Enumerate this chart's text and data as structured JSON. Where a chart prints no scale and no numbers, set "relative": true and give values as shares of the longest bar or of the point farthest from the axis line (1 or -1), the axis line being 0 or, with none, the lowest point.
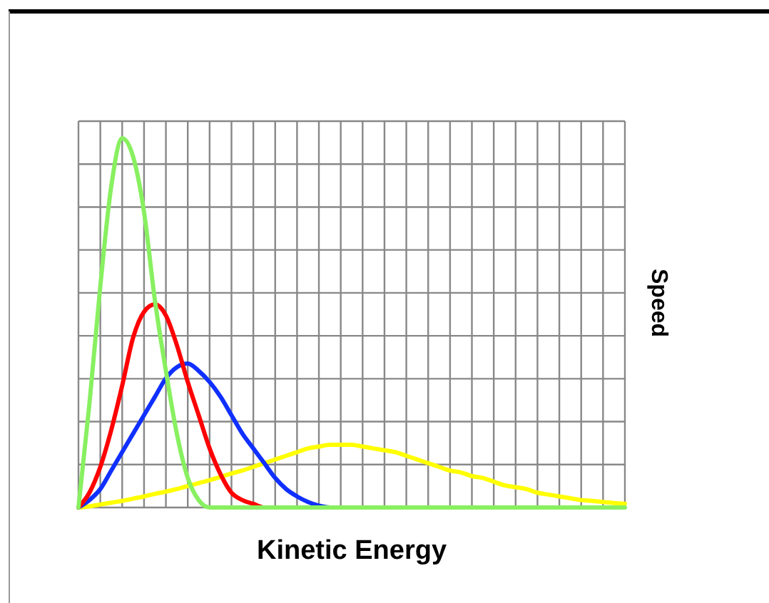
{
  "chart_data": {
    "type": "line",
    "xlabel": "Kinetic Energy",
    "ylabel": "Speed",
    "relative": true,
    "grid": true,
    "marker": "none",
    "line_style": "solid",
    "categories": [
      null,
      null,
      null,
      null,
      null,
      null,
      null,
      null,
      null,
      null,
      null,
      null,
      null,
      null,
      null,
      null,
      null,
      null,
      null,
      null,
      null,
      null,
      null,
      null,
      null,
      null,
      null,
      null,
      null,
      null,
      null,
      null,
      null,
      null,
      null,
      null,
      null,
      null,
      null,
      null,
      null,
      null,
      null,
      null,
      null,
      null,
      null,
      null,
      null,
      null,
      null
    ],
    "series": [
      {
        "color": "#ffff00",
        "values": [
          0,
          0.003,
          0.008,
          0.013,
          0.018,
          0.024,
          0.03,
          0.037,
          0.043,
          0.05,
          0.058,
          0.066,
          0.074,
          0.083,
          0.092,
          0.1,
          0.11,
          0.12,
          0.13,
          0.14,
          0.15,
          0.16,
          0.165,
          0.17,
          0.17,
          0.17,
          0.165,
          0.16,
          0.155,
          0.15,
          0.14,
          0.13,
          0.12,
          0.11,
          0.1,
          0.095,
          0.085,
          0.08,
          0.07,
          0.06,
          0.055,
          0.05,
          0.04,
          0.035,
          0.03,
          0.025,
          0.02,
          0.018,
          0.015,
          0.012,
          0.01
        ]
      },
      {
        "color": "#1030ff",
        "values": [
          0,
          0.02,
          0.05,
          0.1,
          0.15,
          0.2,
          0.25,
          0.3,
          0.35,
          0.38,
          0.39,
          0.37,
          0.34,
          0.3,
          0.25,
          0.2,
          0.16,
          0.12,
          0.08,
          0.05,
          0.03,
          0.015,
          0.005,
          0,
          0,
          null,
          null,
          null,
          null,
          null,
          null,
          null,
          null,
          null,
          null,
          null,
          null,
          null,
          null,
          null,
          null,
          null,
          null,
          null,
          null,
          null,
          null,
          null,
          null,
          null,
          null
        ]
      },
      {
        "color": "#ff0000",
        "values": [
          0,
          0.04,
          0.11,
          0.21,
          0.33,
          0.46,
          0.53,
          0.55,
          0.52,
          0.44,
          0.34,
          0.25,
          0.16,
          0.09,
          0.04,
          0.02,
          0.01,
          0,
          0,
          null,
          null,
          null,
          null,
          null,
          null,
          null,
          null,
          null,
          null,
          null,
          null,
          null,
          null,
          null,
          null,
          null,
          null,
          null,
          null,
          null,
          null,
          null,
          null,
          null,
          null,
          null,
          null,
          null,
          null,
          null,
          null
        ]
      },
      {
        "color": "#88f060",
        "values": [
          0,
          0.28,
          0.6,
          0.87,
          1,
          0.95,
          0.8,
          0.56,
          0.37,
          0.2,
          0.08,
          0.02,
          0,
          0,
          0,
          0,
          0,
          0,
          0,
          0,
          0,
          0,
          0,
          0,
          0,
          0,
          0,
          0,
          0,
          0,
          0,
          0,
          0,
          0,
          0,
          0,
          0,
          0,
          0,
          0,
          0,
          0,
          0,
          0,
          0,
          0,
          0,
          0,
          0,
          0,
          0
        ]
      }
    ]
  }
}
